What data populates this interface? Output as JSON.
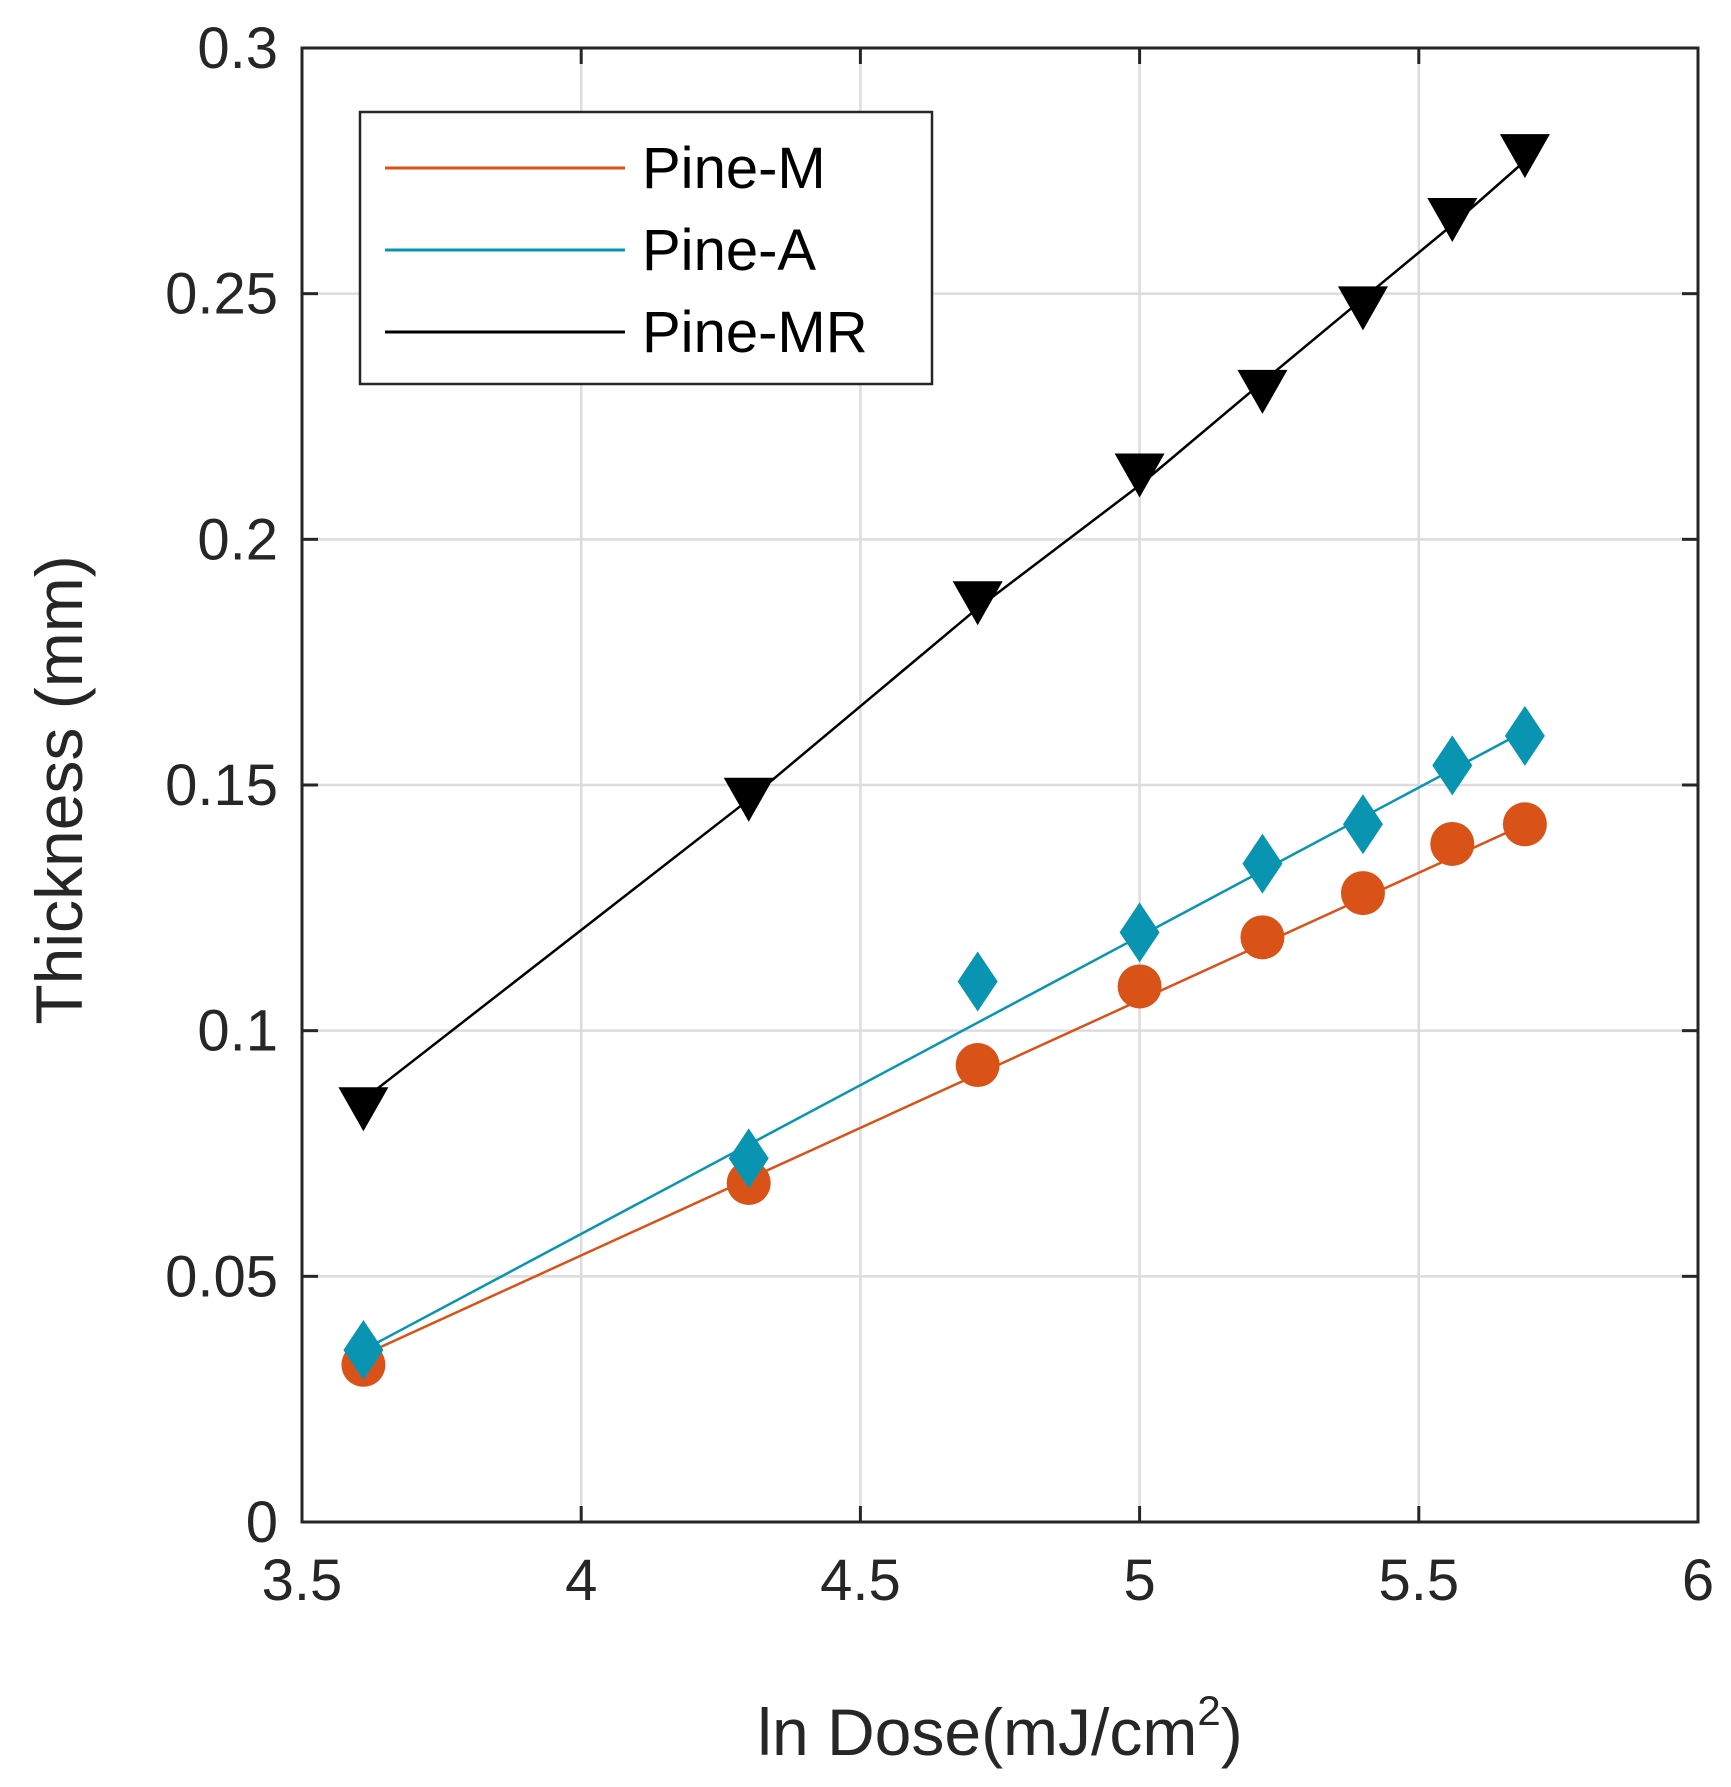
{
  "chart_data": {
    "type": "scatter",
    "xlabel": "ln Dose(mJ/cm",
    "xlabel_sup": "2",
    "xlabel_end": ")",
    "ylabel": "Thickness (mm)",
    "xlim": [
      3.5,
      6
    ],
    "ylim": [
      0,
      0.3
    ],
    "xticks": [
      3.5,
      4,
      4.5,
      5,
      5.5,
      6
    ],
    "xtick_labels": [
      "3.5",
      "4",
      "4.5",
      "5",
      "5.5",
      "6"
    ],
    "yticks": [
      0,
      0.05,
      0.1,
      0.15,
      0.2,
      0.25,
      0.3
    ],
    "ytick_labels": [
      "0",
      "0.05",
      "0.1",
      "0.15",
      "0.2",
      "0.25",
      "0.3"
    ],
    "grid": true,
    "legend_position": "top-left",
    "series": [
      {
        "name": "Pine-M",
        "color": "#D95319",
        "marker": "circle",
        "x": [
          3.61,
          4.3,
          4.71,
          5.0,
          5.22,
          5.4,
          5.56,
          5.69
        ],
        "y": [
          0.032,
          0.069,
          0.093,
          0.109,
          0.119,
          0.128,
          0.138,
          0.142
        ],
        "fit": [
          [
            3.61,
            0.034
          ],
          [
            5.69,
            0.142
          ]
        ]
      },
      {
        "name": "Pine-A",
        "color": "#0995B2",
        "marker": "diamond",
        "x": [
          3.61,
          4.3,
          4.71,
          5.0,
          5.22,
          5.4,
          5.56,
          5.69
        ],
        "y": [
          0.035,
          0.074,
          0.11,
          0.12,
          0.134,
          0.142,
          0.154,
          0.16
        ],
        "fit": [
          [
            3.61,
            0.035
          ],
          [
            5.69,
            0.161
          ]
        ]
      },
      {
        "name": "Pine-MR",
        "color": "#000000",
        "marker": "triangle-down",
        "x": [
          3.61,
          4.3,
          4.71,
          5.0,
          5.22,
          5.4,
          5.56,
          5.69
        ],
        "y": [
          0.084,
          0.147,
          0.187,
          0.213,
          0.23,
          0.247,
          0.265,
          0.278
        ],
        "fit": [
          [
            3.61,
            0.086
          ],
          [
            4.3,
            0.147
          ],
          [
            4.71,
            0.186
          ],
          [
            5.0,
            0.211
          ],
          [
            5.22,
            0.232
          ],
          [
            5.4,
            0.249
          ],
          [
            5.56,
            0.264
          ],
          [
            5.69,
            0.277
          ]
        ]
      }
    ]
  }
}
